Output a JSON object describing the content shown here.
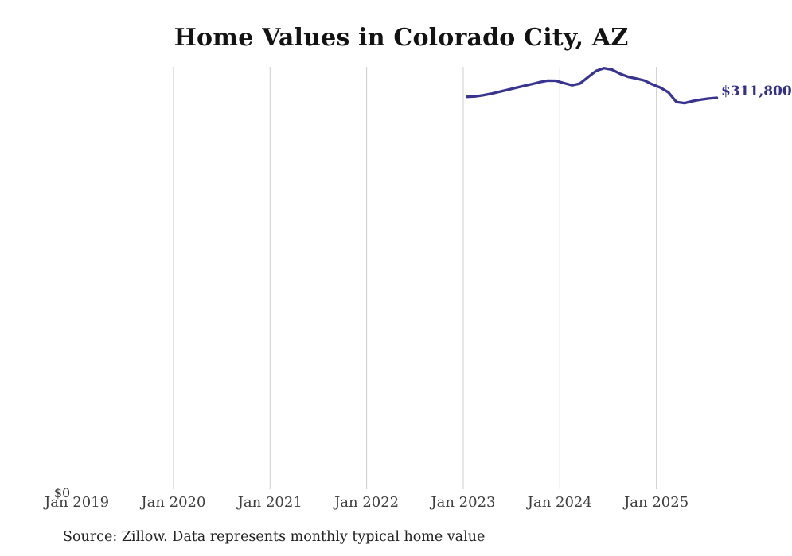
{
  "chart_data": {
    "type": "line",
    "title": "Home Values in Colorado City, AZ",
    "x_ticks": [
      {
        "label": "Jan 2019",
        "gridline": false
      },
      {
        "label": "Jan 2020",
        "gridline": true
      },
      {
        "label": "Jan 2021",
        "gridline": true
      },
      {
        "label": "Jan 2022",
        "gridline": true
      },
      {
        "label": "Jan 2023",
        "gridline": true
      },
      {
        "label": "Jan 2024",
        "gridline": true
      },
      {
        "label": "Jan 2025",
        "gridline": true
      }
    ],
    "y_tick_labels": [
      "$0"
    ],
    "ylim": [
      0,
      336500
    ],
    "grid": "vertical-only",
    "legend": "none",
    "series": [
      {
        "name": "Typical home value",
        "x": [
          "2023-01",
          "2023-02",
          "2023-03",
          "2023-04",
          "2023-05",
          "2023-06",
          "2023-07",
          "2023-08",
          "2023-09",
          "2023-10",
          "2023-11",
          "2023-12",
          "2024-01",
          "2024-02",
          "2024-03",
          "2024-04",
          "2024-05",
          "2024-06",
          "2024-07",
          "2024-08",
          "2024-09",
          "2024-10",
          "2024-11",
          "2024-12",
          "2025-01",
          "2025-02",
          "2025-03",
          "2025-04",
          "2025-05",
          "2025-06",
          "2025-07",
          "2025-08"
        ],
        "values": [
          312600,
          312900,
          313800,
          315100,
          316600,
          318100,
          319700,
          321200,
          322700,
          324300,
          325500,
          325400,
          323600,
          321800,
          323100,
          328200,
          333200,
          335400,
          334200,
          330900,
          328500,
          327100,
          325600,
          322500,
          319900,
          316100,
          308400,
          307600,
          309200,
          310400,
          311200,
          311800
        ]
      }
    ],
    "end_value_label": "$311,800",
    "colors": {
      "line": "#3a3491",
      "end_label": "#33308c",
      "gridline": "#cccccc"
    },
    "source_note": "Source: Zillow. Data represents monthly typical home value"
  }
}
